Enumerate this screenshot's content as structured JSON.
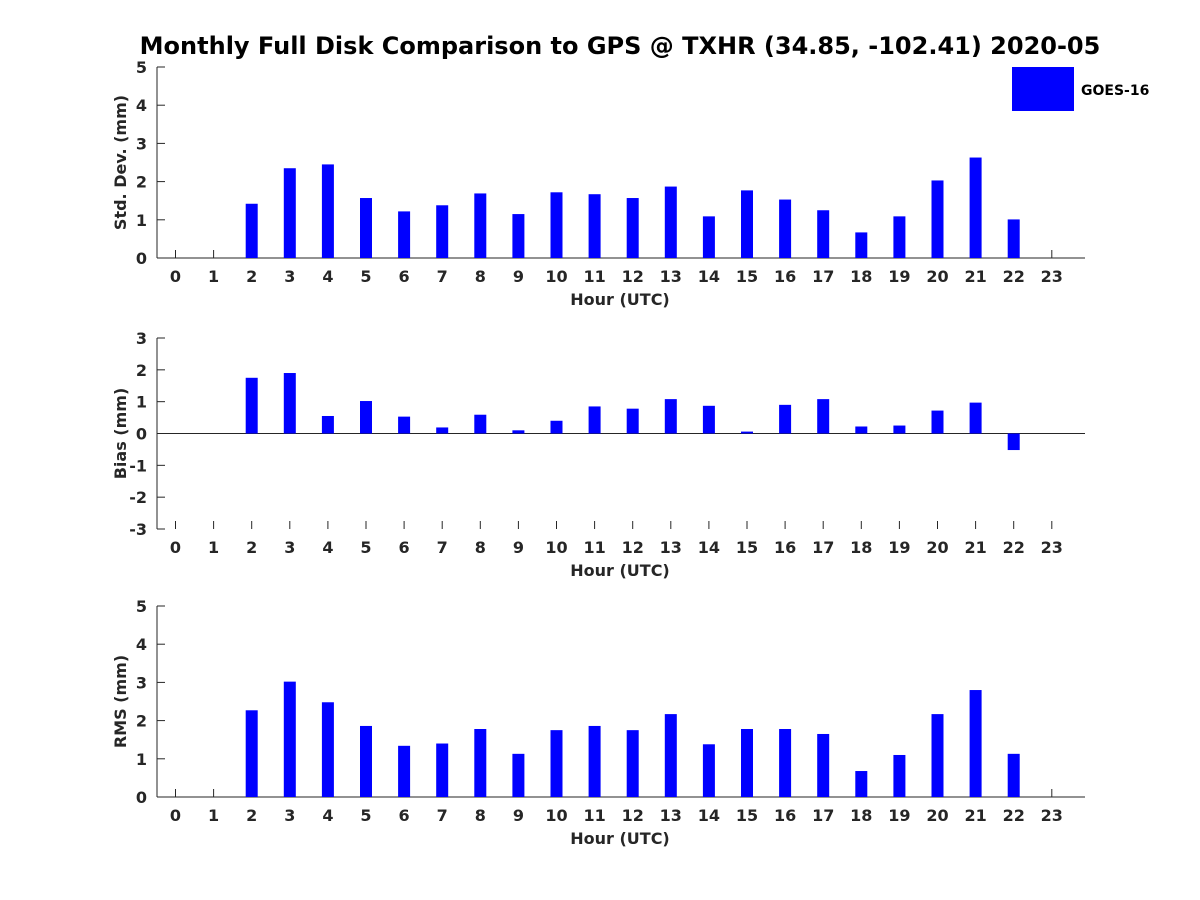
{
  "title": "Monthly Full Disk Comparison to GPS @ TXHR (34.85, -102.41) 2020-05",
  "legend": {
    "label": "GOES-16",
    "color": "#0000ff",
    "placement": "top-right"
  },
  "chart_data": [
    {
      "type": "bar",
      "name": "Std. Dev.",
      "xlabel": "Hour (UTC)",
      "ylabel": "Std. Dev. (mm)",
      "categories": [
        0,
        1,
        2,
        3,
        4,
        5,
        6,
        7,
        8,
        9,
        10,
        11,
        12,
        13,
        14,
        15,
        16,
        17,
        18,
        19,
        20,
        21,
        22,
        23
      ],
      "ylim": [
        0,
        5
      ],
      "yticks": [
        0,
        1,
        2,
        3,
        4,
        5
      ],
      "series": [
        {
          "name": "GOES-16",
          "color": "#0000ff",
          "values": [
            null,
            null,
            1.42,
            2.35,
            2.45,
            1.57,
            1.22,
            1.38,
            1.69,
            1.15,
            1.72,
            1.67,
            1.57,
            1.87,
            1.09,
            1.77,
            1.53,
            1.25,
            0.67,
            1.09,
            2.03,
            2.63,
            1.01,
            null
          ]
        }
      ]
    },
    {
      "type": "bar",
      "name": "Bias",
      "xlabel": "Hour (UTC)",
      "ylabel": "Bias (mm)",
      "categories": [
        0,
        1,
        2,
        3,
        4,
        5,
        6,
        7,
        8,
        9,
        10,
        11,
        12,
        13,
        14,
        15,
        16,
        17,
        18,
        19,
        20,
        21,
        22,
        23
      ],
      "ylim": [
        -3,
        3
      ],
      "yticks": [
        -3,
        -2,
        -1,
        0,
        1,
        2,
        3
      ],
      "series": [
        {
          "name": "GOES-16",
          "color": "#0000ff",
          "values": [
            null,
            null,
            1.75,
            1.9,
            0.55,
            1.02,
            0.53,
            0.19,
            0.59,
            0.1,
            0.4,
            0.85,
            0.78,
            1.08,
            0.87,
            0.06,
            0.9,
            1.08,
            0.22,
            0.25,
            0.72,
            0.97,
            -0.52,
            null
          ]
        }
      ]
    },
    {
      "type": "bar",
      "name": "RMS",
      "xlabel": "Hour (UTC)",
      "ylabel": "RMS (mm)",
      "categories": [
        0,
        1,
        2,
        3,
        4,
        5,
        6,
        7,
        8,
        9,
        10,
        11,
        12,
        13,
        14,
        15,
        16,
        17,
        18,
        19,
        20,
        21,
        22,
        23
      ],
      "ylim": [
        0,
        5
      ],
      "yticks": [
        0,
        1,
        2,
        3,
        4,
        5
      ],
      "series": [
        {
          "name": "GOES-16",
          "color": "#0000ff",
          "values": [
            null,
            null,
            2.27,
            3.02,
            2.48,
            1.86,
            1.34,
            1.4,
            1.78,
            1.13,
            1.75,
            1.86,
            1.75,
            2.17,
            1.38,
            1.78,
            1.78,
            1.65,
            0.68,
            1.1,
            2.17,
            2.8,
            1.13,
            null
          ]
        }
      ]
    }
  ]
}
